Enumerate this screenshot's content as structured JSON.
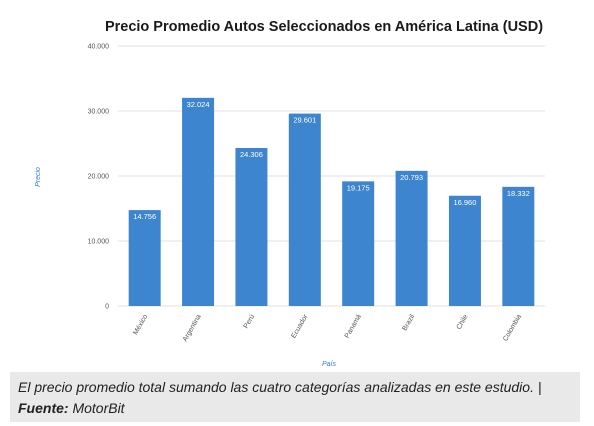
{
  "chart_data": {
    "type": "bar",
    "title": "Precio Promedio Autos Seleccionados en América Latina (USD)",
    "xlabel": "País",
    "ylabel": "Precio",
    "categories": [
      "México",
      "Argentina",
      "Perú",
      "Ecuador",
      "Panamá",
      "Brazil",
      "Chile",
      "Colombia"
    ],
    "values": [
      14756,
      32024,
      24306,
      29601,
      19175,
      20793,
      16960,
      18332
    ],
    "data_labels": [
      "14.756",
      "32.024",
      "24.306",
      "29.601",
      "19.175",
      "20.793",
      "16.960",
      "18.332"
    ],
    "ylim": [
      0,
      40000
    ],
    "yticks": [
      0,
      10000,
      20000,
      30000,
      40000
    ],
    "ytick_labels": [
      "0",
      "10.000",
      "20.000",
      "30.000",
      "40.000"
    ],
    "grid": true,
    "bar_color": "#3d86cf"
  },
  "caption": {
    "text": "El precio promedio total sumando las cuatro categorías analizadas en este estudio. | ",
    "source_label": "Fuente:",
    "source_name": " MotorBit"
  }
}
